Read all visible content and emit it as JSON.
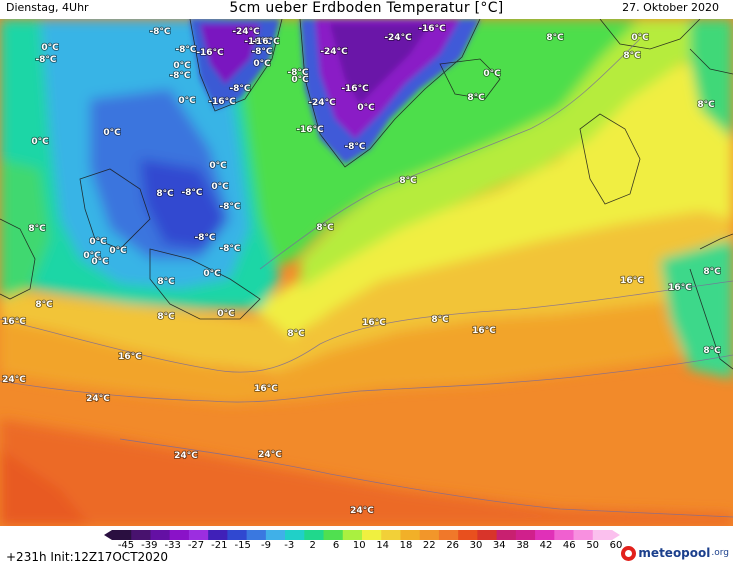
{
  "header": {
    "left": "Dienstag, 4Uhr",
    "title": "5cm ueber Erdboden Temperatur [°C]",
    "right": "27. Oktober 2020"
  },
  "footer": {
    "init": "+231h Init:12Z17OCT2020",
    "logo_name": "meteopool",
    "logo_tld": ".org"
  },
  "legend": {
    "unit": "°C",
    "tick_labels": [
      "-45",
      "-39",
      "-33",
      "-27",
      "-21",
      "-15",
      "-9",
      "-3",
      "2",
      "6",
      "10",
      "14",
      "18",
      "22",
      "26",
      "30",
      "34",
      "38",
      "42",
      "46",
      "50",
      "60"
    ],
    "colors": [
      "#2a0f40",
      "#48126e",
      "#6410a4",
      "#8a12c8",
      "#9c2ee0",
      "#4020b8",
      "#3048d0",
      "#3a78e0",
      "#40b0e8",
      "#20d0c8",
      "#20d88c",
      "#50e050",
      "#aaf040",
      "#f0f040",
      "#f2d038",
      "#f2b028",
      "#f2962a",
      "#f0782a",
      "#e8501e",
      "#d8342a",
      "#c82070",
      "#d0208c",
      "#e030b8",
      "#f060d0",
      "#f890e0",
      "#fbc0ee"
    ]
  },
  "icons": {
    "logo": "meteopool-logo-icon"
  },
  "map_labels": [
    {
      "t": "-8°C"
    },
    {
      "t": "-24°C"
    },
    {
      "t": "-16°C"
    },
    {
      "t": "-24°C"
    },
    {
      "t": "-16°C"
    },
    {
      "t": "-8°C"
    },
    {
      "t": "0°C"
    },
    {
      "t": "-8°C"
    },
    {
      "t": "0°C"
    },
    {
      "t": "-8°C"
    },
    {
      "t": "-16°C"
    },
    {
      "t": "0°C"
    },
    {
      "t": "-8°C"
    },
    {
      "t": "-16°C"
    },
    {
      "t": "-24°C"
    },
    {
      "t": "0°C"
    },
    {
      "t": "8°C"
    },
    {
      "t": "0°C"
    },
    {
      "t": "8°C"
    },
    {
      "t": "-8°C"
    },
    {
      "t": "-16°C"
    },
    {
      "t": "-8°C"
    },
    {
      "t": "0°C"
    },
    {
      "t": "0°C"
    },
    {
      "t": "-16°C"
    },
    {
      "t": "0°C"
    },
    {
      "t": "8°C"
    },
    {
      "t": "0°C"
    },
    {
      "t": "-24°C"
    },
    {
      "t": "8°C"
    },
    {
      "t": "-16°C"
    },
    {
      "t": "0°C"
    },
    {
      "t": "0°C"
    },
    {
      "t": "-8°C"
    },
    {
      "t": "8°C"
    },
    {
      "t": "0°C"
    },
    {
      "t": "8°C"
    },
    {
      "t": "-8°C"
    },
    {
      "t": "-8°C"
    },
    {
      "t": "8°C"
    },
    {
      "t": "-8°C"
    },
    {
      "t": "8°C"
    },
    {
      "t": "0°C"
    },
    {
      "t": "-8°C"
    },
    {
      "t": "8°C"
    },
    {
      "t": "0°C"
    },
    {
      "t": "0°C"
    },
    {
      "t": "0°C"
    },
    {
      "t": "0°C"
    },
    {
      "t": "16°C"
    },
    {
      "t": "8°C"
    },
    {
      "t": "16°C"
    },
    {
      "t": "8°C"
    },
    {
      "t": "8°C"
    },
    {
      "t": "0°C"
    },
    {
      "t": "8°C"
    },
    {
      "t": "16°C"
    },
    {
      "t": "16°C"
    },
    {
      "t": "8°C"
    },
    {
      "t": "16°C"
    },
    {
      "t": "16°C"
    },
    {
      "t": "8°C"
    },
    {
      "t": "24°C"
    },
    {
      "t": "16°C"
    },
    {
      "t": "24°C"
    },
    {
      "t": "24°C"
    },
    {
      "t": "24°C"
    },
    {
      "t": "24°C"
    }
  ]
}
